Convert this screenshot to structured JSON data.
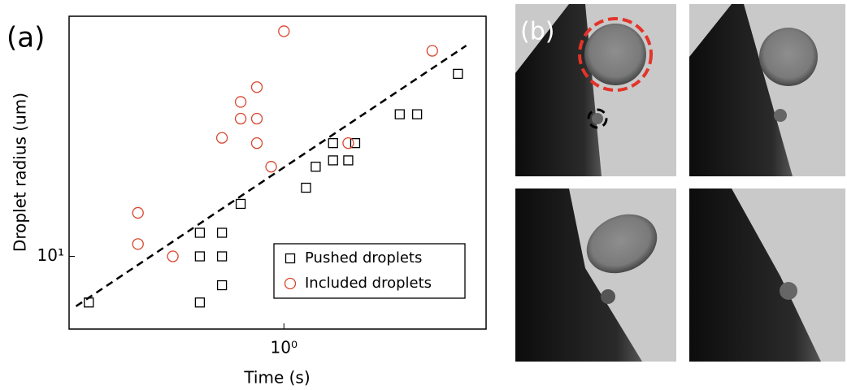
{
  "panel_a_label": "(a)",
  "panel_b_label": "(b)",
  "chart_data": {
    "type": "scatter",
    "x_label": "Time (s)",
    "y_label": "Droplet radius (um)",
    "xscale": "log",
    "yscale": "log",
    "xlim": [
      0.17,
      5.3
    ],
    "ylim": [
      5.7,
      64
    ],
    "xticks": [
      {
        "value": 1,
        "label": "10⁰"
      }
    ],
    "yticks": [
      {
        "value": 10,
        "label": "10¹"
      }
    ],
    "legend_position": "lower right",
    "series": [
      {
        "name": "Pushed droplets",
        "color": "#000000",
        "marker": "square",
        "x": [
          0.2,
          0.5,
          0.6,
          0.5,
          0.6,
          0.5,
          0.6,
          0.7,
          1.2,
          1.3,
          1.5,
          1.7,
          1.5,
          1.8,
          2.6,
          3.0,
          4.2
        ],
        "values": [
          7,
          7,
          8,
          10,
          10,
          12,
          12,
          15,
          17,
          20,
          21,
          21,
          24,
          24,
          30,
          30,
          41
        ]
      },
      {
        "name": "Included droplets",
        "color": "#d9452f",
        "marker": "circle",
        "x": [
          0.3,
          0.3,
          0.4,
          0.6,
          0.7,
          0.7,
          0.8,
          0.8,
          0.8,
          0.9,
          1.0,
          1.7,
          3.4
        ],
        "values": [
          14,
          11,
          10,
          25,
          29,
          33,
          37,
          29,
          24,
          20,
          57,
          24,
          49
        ]
      }
    ],
    "fit_line": {
      "color": "#000000",
      "dash": true,
      "x": [
        0.18,
        4.5
      ],
      "values": [
        6.8,
        51
      ]
    }
  }
}
